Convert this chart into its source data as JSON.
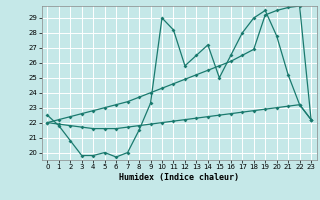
{
  "xlabel": "Humidex (Indice chaleur)",
  "bg_color": "#c5e8e8",
  "line_color": "#1a7a6e",
  "grid_color": "#ffffff",
  "xlim": [
    -0.5,
    23.5
  ],
  "ylim": [
    19.5,
    29.8
  ],
  "xticks": [
    0,
    1,
    2,
    3,
    4,
    5,
    6,
    7,
    8,
    9,
    10,
    11,
    12,
    13,
    14,
    15,
    16,
    17,
    18,
    19,
    20,
    21,
    22,
    23
  ],
  "yticks": [
    20,
    21,
    22,
    23,
    24,
    25,
    26,
    27,
    28,
    29
  ],
  "line1_x": [
    0,
    1,
    2,
    3,
    4,
    5,
    6,
    7,
    8,
    9,
    10,
    11,
    12,
    13,
    14,
    15,
    16,
    17,
    18,
    19,
    20,
    21,
    22,
    23
  ],
  "line1_y": [
    22.5,
    21.8,
    20.8,
    19.8,
    19.8,
    20.0,
    19.7,
    20.0,
    21.5,
    23.3,
    29.0,
    28.2,
    25.8,
    26.5,
    27.2,
    25.0,
    26.5,
    28.0,
    29.0,
    29.5,
    27.8,
    25.2,
    23.2,
    22.2
  ],
  "line2_x": [
    0,
    1,
    2,
    3,
    4,
    5,
    6,
    7,
    8,
    9,
    10,
    11,
    12,
    13,
    14,
    15,
    16,
    17,
    18,
    19,
    20,
    21,
    22,
    23
  ],
  "line2_y": [
    22.0,
    22.2,
    22.4,
    22.6,
    22.8,
    23.0,
    23.2,
    23.4,
    23.7,
    24.0,
    24.3,
    24.6,
    24.9,
    25.2,
    25.5,
    25.8,
    26.1,
    26.5,
    26.9,
    29.2,
    29.5,
    29.7,
    29.8,
    22.2
  ],
  "line3_x": [
    0,
    1,
    2,
    3,
    4,
    5,
    6,
    7,
    8,
    9,
    10,
    11,
    12,
    13,
    14,
    15,
    16,
    17,
    18,
    19,
    20,
    21,
    22,
    23
  ],
  "line3_y": [
    22.0,
    21.9,
    21.8,
    21.7,
    21.6,
    21.6,
    21.6,
    21.7,
    21.8,
    21.9,
    22.0,
    22.1,
    22.2,
    22.3,
    22.4,
    22.5,
    22.6,
    22.7,
    22.8,
    22.9,
    23.0,
    23.1,
    23.2,
    22.2
  ]
}
